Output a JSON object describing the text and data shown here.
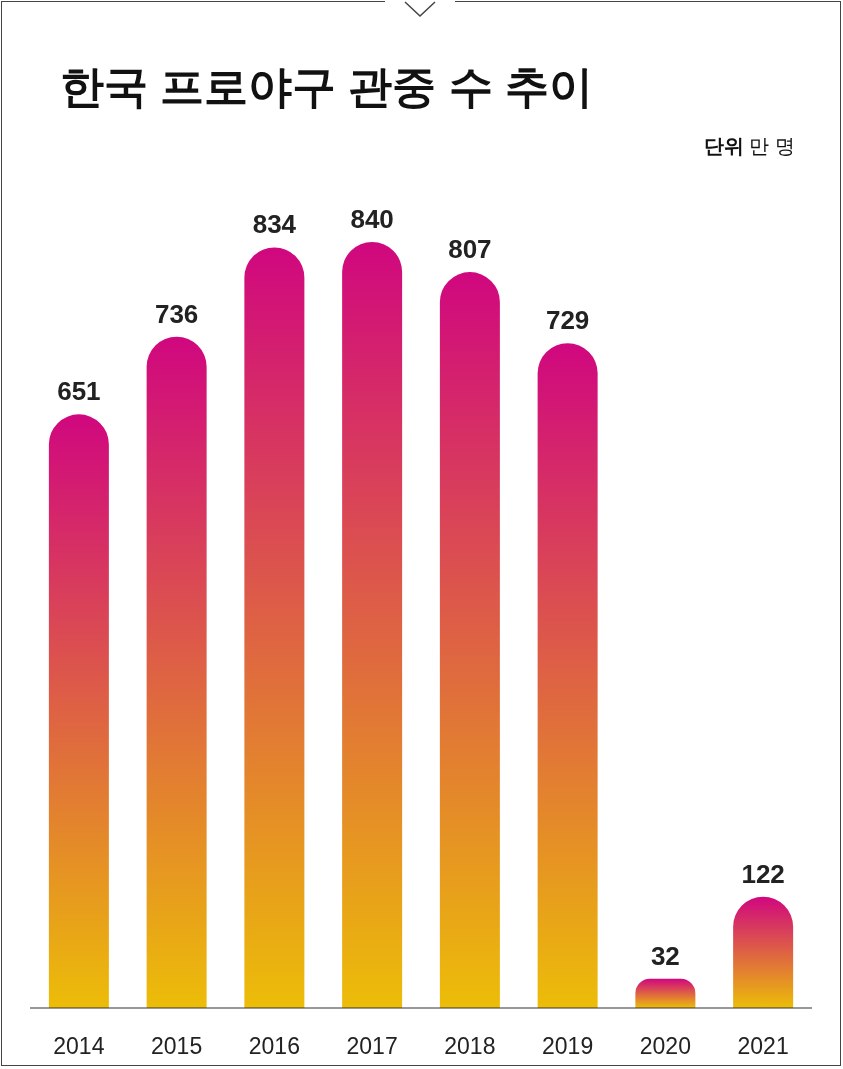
{
  "chart_data": {
    "type": "bar",
    "title": "한국 프로야구 관중 수 추이",
    "annotations": [
      "**단위** 만 명"
    ],
    "categories": [
      "2014",
      "2015",
      "2016",
      "2017",
      "2018",
      "2019",
      "2020",
      "2021"
    ],
    "values": [
      651,
      736,
      834,
      840,
      807,
      729,
      32,
      122
    ],
    "color": "#d0077f",
    "data_labels": true
  }
}
